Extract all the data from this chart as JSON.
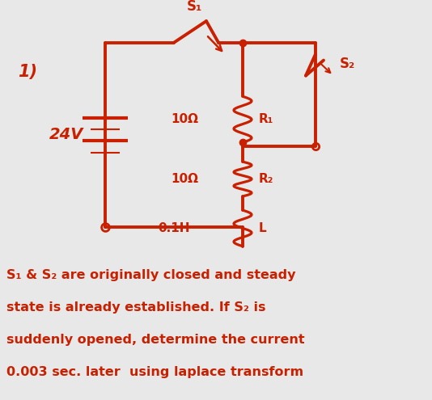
{
  "bg_color": "#e8e8e8",
  "line_color": "#c82000",
  "lw": 2.8,
  "title_num": "1)",
  "battery_label": "24V",
  "R1_label": "10Ω",
  "R1_name": "R₁",
  "R2_label": "10Ω",
  "R2_name": "R₂",
  "L_label": "0.1H",
  "L_name": "L",
  "S1_label": "S₁",
  "S2_label": "S₂",
  "desc_lines": [
    "S₁ & S₂ are originally closed and steady",
    "state is already established. If S₂ is",
    "suddenly opened, determine the current",
    "0.003 sec. later  using laplace transform"
  ]
}
